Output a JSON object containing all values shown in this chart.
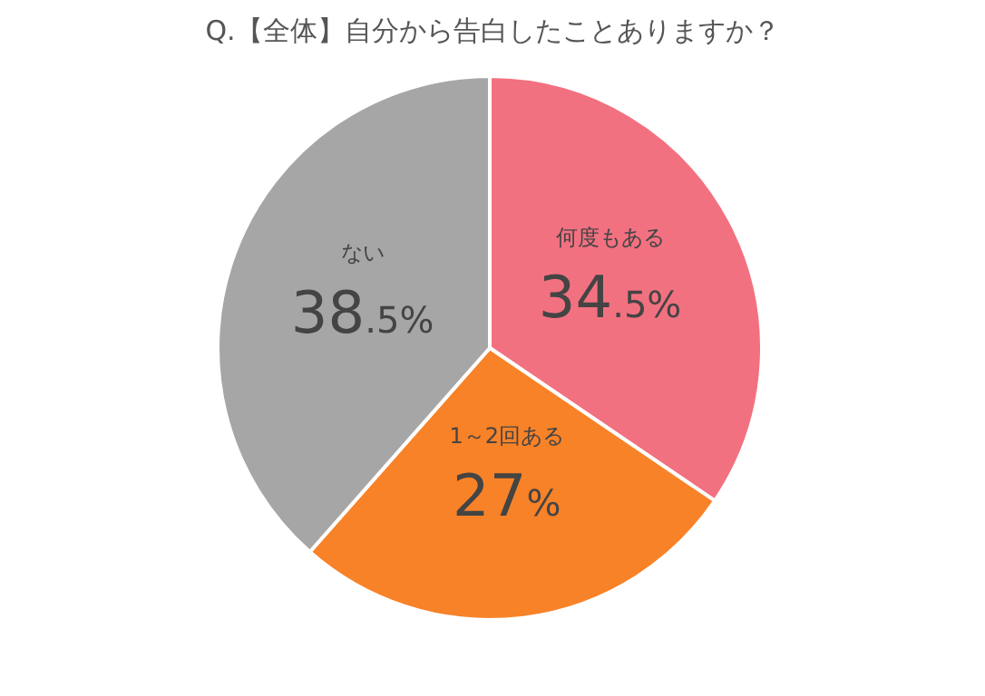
{
  "chart_data": {
    "type": "pie",
    "title": "Q.【全体】自分から告白したことありますか？",
    "categories": [
      "何度もある",
      "1～2回ある",
      "ない"
    ],
    "values": [
      34.5,
      27,
      38.5
    ],
    "colors": [
      "#f27180",
      "#f88228",
      "#a6a6a6"
    ],
    "value_labels": [
      "34.5%",
      "27%",
      "38.5%"
    ]
  }
}
